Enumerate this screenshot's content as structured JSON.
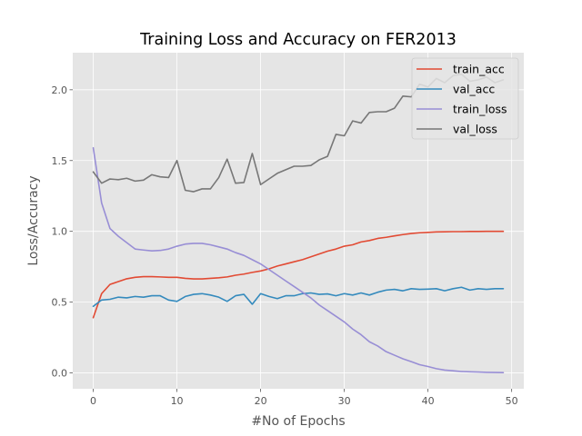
{
  "chart_data": {
    "type": "line",
    "title": "Training Loss and Accuracy on FER2013",
    "xlabel": "#No of Epochs",
    "ylabel": "Loss/Accuracy",
    "xlim": [
      -2.45,
      51.45
    ],
    "ylim": [
      -0.112,
      2.262
    ],
    "xticks": [
      0,
      10,
      20,
      30,
      40,
      50
    ],
    "yticks": [
      0.0,
      0.5,
      1.0,
      1.5,
      2.0
    ],
    "xtick_labels": [
      "0",
      "10",
      "20",
      "30",
      "40",
      "50"
    ],
    "ytick_labels": [
      "0.0",
      "0.5",
      "1.0",
      "1.5",
      "2.0"
    ],
    "grid": true,
    "legend_position": "top-right",
    "x": [
      0,
      1,
      2,
      3,
      4,
      5,
      6,
      7,
      8,
      9,
      10,
      11,
      12,
      13,
      14,
      15,
      16,
      17,
      18,
      19,
      20,
      21,
      22,
      23,
      24,
      25,
      26,
      27,
      28,
      29,
      30,
      31,
      32,
      33,
      34,
      35,
      36,
      37,
      38,
      39,
      40,
      41,
      42,
      43,
      44,
      45,
      46,
      47,
      48,
      49
    ],
    "series": [
      {
        "name": "train_acc",
        "color": "#E24A33",
        "values": [
          0.39,
          0.56,
          0.625,
          0.645,
          0.665,
          0.675,
          0.68,
          0.68,
          0.678,
          0.675,
          0.675,
          0.668,
          0.664,
          0.664,
          0.668,
          0.672,
          0.678,
          0.69,
          0.698,
          0.71,
          0.72,
          0.735,
          0.755,
          0.77,
          0.785,
          0.8,
          0.82,
          0.84,
          0.86,
          0.875,
          0.895,
          0.905,
          0.925,
          0.935,
          0.95,
          0.958,
          0.968,
          0.977,
          0.985,
          0.99,
          0.993,
          0.996,
          0.997,
          0.998,
          0.998,
          0.999,
          0.999,
          1.0,
          1.0,
          1.0
        ]
      },
      {
        "name": "val_acc",
        "color": "#348ABD",
        "values": [
          0.47,
          0.515,
          0.52,
          0.535,
          0.53,
          0.54,
          0.535,
          0.545,
          0.545,
          0.515,
          0.505,
          0.54,
          0.555,
          0.56,
          0.55,
          0.535,
          0.505,
          0.545,
          0.555,
          0.485,
          0.56,
          0.54,
          0.525,
          0.545,
          0.545,
          0.56,
          0.565,
          0.555,
          0.558,
          0.545,
          0.56,
          0.55,
          0.565,
          0.55,
          0.57,
          0.585,
          0.59,
          0.58,
          0.595,
          0.59,
          0.592,
          0.595,
          0.58,
          0.595,
          0.605,
          0.585,
          0.595,
          0.59,
          0.595,
          0.595
        ]
      },
      {
        "name": "train_loss",
        "color": "#988ED5",
        "values": [
          1.59,
          1.2,
          1.02,
          0.965,
          0.92,
          0.875,
          0.868,
          0.862,
          0.865,
          0.875,
          0.895,
          0.91,
          0.915,
          0.915,
          0.905,
          0.89,
          0.875,
          0.85,
          0.83,
          0.8,
          0.77,
          0.73,
          0.69,
          0.65,
          0.61,
          0.57,
          0.53,
          0.48,
          0.44,
          0.4,
          0.36,
          0.31,
          0.27,
          0.22,
          0.19,
          0.15,
          0.125,
          0.1,
          0.08,
          0.058,
          0.045,
          0.03,
          0.02,
          0.015,
          0.01,
          0.008,
          0.006,
          0.004,
          0.003,
          0.002
        ]
      },
      {
        "name": "val_loss",
        "color": "#777777",
        "values": [
          1.42,
          1.34,
          1.37,
          1.365,
          1.375,
          1.355,
          1.362,
          1.4,
          1.385,
          1.38,
          1.5,
          1.29,
          1.28,
          1.3,
          1.3,
          1.38,
          1.51,
          1.34,
          1.345,
          1.55,
          1.33,
          1.37,
          1.41,
          1.435,
          1.46,
          1.46,
          1.465,
          1.505,
          1.53,
          1.685,
          1.675,
          1.78,
          1.765,
          1.84,
          1.845,
          1.845,
          1.87,
          1.955,
          1.95,
          2.04,
          2.02,
          2.08,
          2.05,
          2.1,
          2.11,
          2.06,
          2.07,
          2.09,
          2.05,
          2.07
        ]
      }
    ]
  }
}
